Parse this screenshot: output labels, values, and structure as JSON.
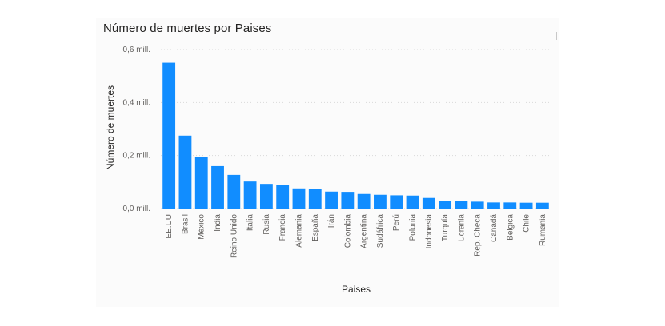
{
  "chart_data": {
    "type": "bar",
    "title": "Número de muertes por Paises",
    "xlabel": "Paises",
    "ylabel": "Número de muertes",
    "ylim": [
      0,
      0.6
    ],
    "y_unit": "mill.",
    "y_ticks": [
      "0,0 mill.",
      "0,2 mill.",
      "0,4 mill.",
      "0,6 mill."
    ],
    "grid": true,
    "bar_color": "#118dff",
    "categories": [
      "EE.UU",
      "Brasil",
      "México",
      "India",
      "Reino Unido",
      "Italia",
      "Rusia",
      "Francia",
      "Alemania",
      "España",
      "Irán",
      "Colombia",
      "Argentina",
      "Sudáfrica",
      "Perú",
      "Polonia",
      "Indonesia",
      "Turquía",
      "Ucrania",
      "Rep. Checa",
      "Canadá",
      "Bélgica",
      "Chile",
      "Rumania"
    ],
    "values": [
      0.55,
      0.275,
      0.195,
      0.16,
      0.127,
      0.102,
      0.093,
      0.09,
      0.076,
      0.073,
      0.064,
      0.063,
      0.055,
      0.052,
      0.05,
      0.049,
      0.04,
      0.03,
      0.03,
      0.026,
      0.023,
      0.023,
      0.022,
      0.022
    ]
  }
}
